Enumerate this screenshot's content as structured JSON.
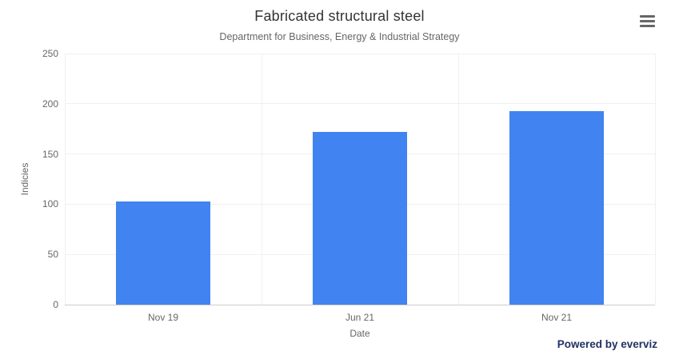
{
  "chart_data": {
    "type": "bar",
    "title": "Fabricated structural steel",
    "subtitle": "Department for Business, Energy & Industrial Strategy",
    "categories": [
      "Nov 19",
      "Jun 21",
      "Nov 21"
    ],
    "values": [
      103,
      172,
      193
    ],
    "xlabel": "Date",
    "ylabel": "Indicies",
    "ylim": [
      0,
      250
    ],
    "yticks": [
      0,
      50,
      100,
      150,
      200,
      250
    ],
    "grid": true,
    "legend_position": "none",
    "bar_color": "#4183f1"
  },
  "menu": {
    "icon": "hamburger-icon"
  },
  "credits": {
    "label": "Powered by everviz"
  },
  "colors": {
    "bar": "#4183f1",
    "title_text": "#333333",
    "muted_text": "#666666",
    "gridline": "#f0f0f0",
    "axis_line": "#cccccc",
    "credits_text": "#1e3260",
    "menu_icon": "#666666",
    "background": "#ffffff"
  }
}
